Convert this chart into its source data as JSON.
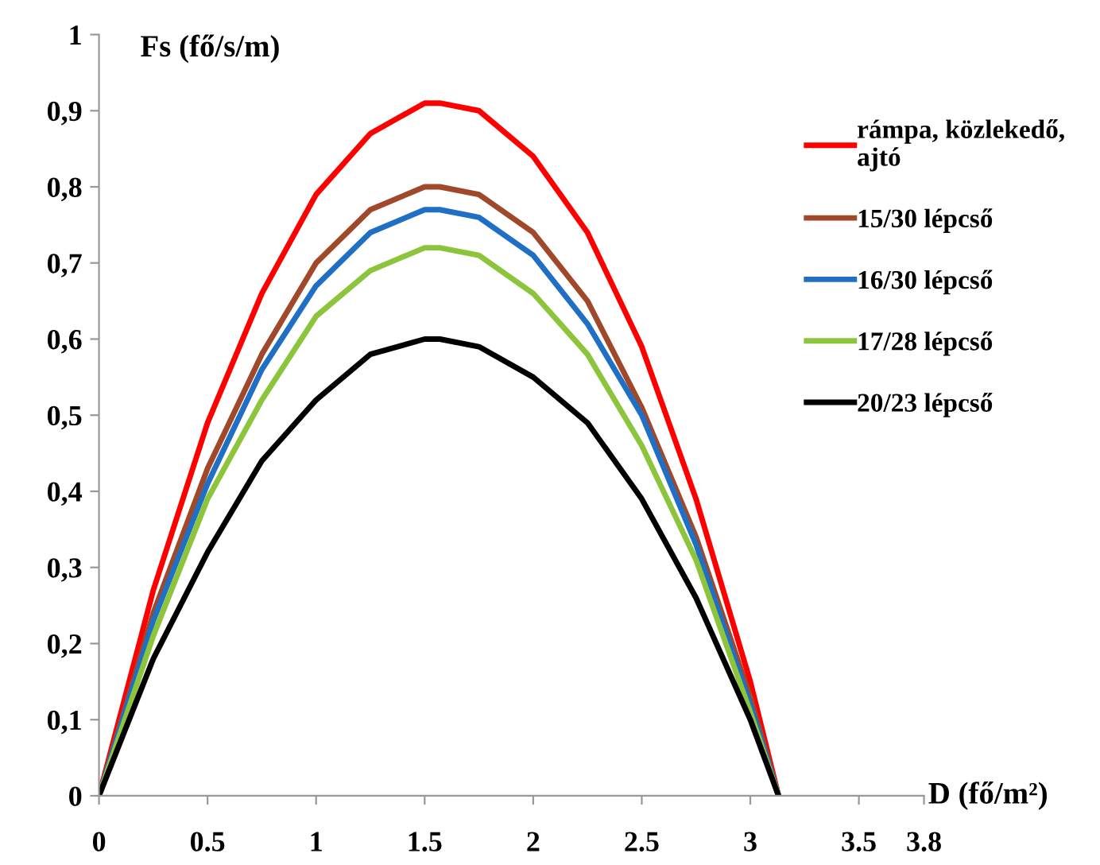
{
  "chart_data": {
    "type": "line",
    "xlabel": "D (fő/m²)",
    "ylabel": "Fs (fő/s/m)",
    "x": [
      0,
      0.25,
      0.5,
      0.75,
      1,
      1.25,
      1.5,
      1.57,
      1.75,
      2,
      2.25,
      2.5,
      2.75,
      3,
      3.13
    ],
    "series": [
      {
        "name": "rámpa, közlekedő,\najtó",
        "color": "#ff0000",
        "values": [
          0,
          0.27,
          0.49,
          0.66,
          0.79,
          0.87,
          0.91,
          0.91,
          0.9,
          0.84,
          0.74,
          0.59,
          0.39,
          0.15,
          0
        ]
      },
      {
        "name": "15/30 lépcső",
        "color": "#a0482a",
        "values": [
          0,
          0.24,
          0.43,
          0.58,
          0.7,
          0.77,
          0.8,
          0.8,
          0.79,
          0.74,
          0.65,
          0.51,
          0.34,
          0.13,
          0
        ]
      },
      {
        "name": "16/30 lépcső",
        "color": "#1f6fc4",
        "values": [
          0,
          0.23,
          0.41,
          0.56,
          0.67,
          0.74,
          0.77,
          0.77,
          0.76,
          0.71,
          0.62,
          0.5,
          0.33,
          0.12,
          0
        ]
      },
      {
        "name": "17/28 lépcső",
        "color": "#8cc43c",
        "values": [
          0,
          0.21,
          0.39,
          0.52,
          0.63,
          0.69,
          0.72,
          0.72,
          0.71,
          0.66,
          0.58,
          0.46,
          0.31,
          0.11,
          0
        ]
      },
      {
        "name": "20/23 lépcső",
        "color": "#000000",
        "values": [
          0,
          0.18,
          0.32,
          0.44,
          0.52,
          0.58,
          0.6,
          0.6,
          0.59,
          0.55,
          0.49,
          0.39,
          0.26,
          0.1,
          0
        ]
      }
    ],
    "xlim": [
      0,
      3.8
    ],
    "xticks": [
      0,
      0.5,
      1,
      1.5,
      2,
      2.5,
      3,
      3.5,
      3.8
    ],
    "ylim": [
      0,
      1
    ],
    "yticks": [
      0,
      {
        "value": 0.1,
        "label": "0,1"
      },
      {
        "value": 0.2,
        "label": "0,2"
      },
      {
        "value": 0.3,
        "label": "0,3"
      },
      {
        "value": 0.4,
        "label": "0,4"
      },
      {
        "value": 0.5,
        "label": "0,5"
      },
      {
        "value": 0.6,
        "label": "0,6"
      },
      {
        "value": 0.7,
        "label": "0,7"
      },
      {
        "value": 0.8,
        "label": "0,8"
      },
      {
        "value": 0.9,
        "label": "0,9"
      },
      1
    ],
    "grid": false,
    "legend": "top right",
    "marker": "none",
    "line_style": "solid"
  }
}
